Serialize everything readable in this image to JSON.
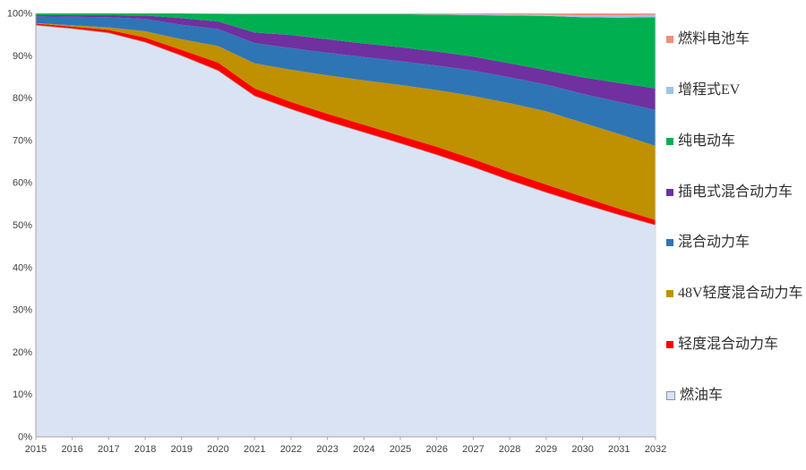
{
  "chart_data": {
    "type": "area",
    "stacking": "percent",
    "title": "",
    "xlabel": "",
    "ylabel": "",
    "x": [
      2015,
      2016,
      2017,
      2018,
      2019,
      2020,
      2021,
      2022,
      2023,
      2024,
      2025,
      2026,
      2027,
      2028,
      2029,
      2030,
      2031,
      2032
    ],
    "x_tick_labels": [
      "2015",
      "2016",
      "2017",
      "2018",
      "2019",
      "2020",
      "2021",
      "2022",
      "2023",
      "2024",
      "2025",
      "2026",
      "2027",
      "2028",
      "2029",
      "2030",
      "2031",
      "2032"
    ],
    "y_tick_labels": [
      "0%",
      "10%",
      "20%",
      "30%",
      "40%",
      "50%",
      "60%",
      "70%",
      "80%",
      "90%",
      "100%"
    ],
    "ylim": [
      0,
      100
    ],
    "grid": false,
    "legend_position": "right",
    "series": [
      {
        "name": "燃料电池车",
        "color": "#ef8d7d",
        "values": [
          0,
          0,
          0,
          0,
          0,
          0.05,
          0.1,
          0.1,
          0.1,
          0.1,
          0.1,
          0.15,
          0.2,
          0.25,
          0.3,
          0.45,
          0.5,
          0.3
        ]
      },
      {
        "name": "增程式EV",
        "color": "#9dc3e6",
        "values": [
          0,
          0,
          0,
          0,
          0,
          0.05,
          0.1,
          0.1,
          0.1,
          0.1,
          0.1,
          0.15,
          0.2,
          0.25,
          0.3,
          0.45,
          0.5,
          0.6
        ]
      },
      {
        "name": "纯电动车",
        "color": "#00b050",
        "values": [
          0.4,
          0.4,
          0.4,
          0.5,
          1.1,
          1.8,
          4.3,
          4.9,
          5.9,
          6.9,
          7.8,
          8.7,
          9.8,
          11.3,
          12.8,
          14.2,
          15.4,
          16.8
        ]
      },
      {
        "name": "插电式混合动力车",
        "color": "#7030a0",
        "values": [
          0.3,
          0.4,
          0.5,
          0.8,
          1.6,
          1.8,
          2.5,
          3.1,
          3.2,
          3.2,
          3.3,
          3.3,
          3.3,
          3.3,
          3.4,
          3.9,
          4.5,
          5.1
        ]
      },
      {
        "name": "混合动力车",
        "color": "#2e75b6",
        "values": [
          1.6,
          2.0,
          2.4,
          2.9,
          3.4,
          4.0,
          4.8,
          5.1,
          5.3,
          5.5,
          5.6,
          5.8,
          6.0,
          6.1,
          6.3,
          6.8,
          7.6,
          8.5
        ]
      },
      {
        "name": "48V轻度混合动力车",
        "color": "#bf9000",
        "values": [
          0.1,
          0.3,
          0.6,
          1.5,
          2.5,
          3.9,
          5.9,
          7.6,
          9.1,
          10.5,
          12.0,
          13.4,
          14.9,
          16.3,
          17.3,
          17.5,
          17.6,
          17.5
        ]
      },
      {
        "name": "轻度混合动力车",
        "color": "#fe0000",
        "values": [
          0.4,
          0.5,
          0.7,
          1.1,
          1.4,
          1.9,
          1.8,
          1.7,
          1.8,
          1.8,
          1.8,
          1.9,
          1.9,
          1.9,
          1.9,
          1.7,
          1.5,
          1.2
        ]
      },
      {
        "name": "燃油车",
        "color": "#dae3f3",
        "swatch_border": "#8496b0",
        "top_outline": "#a6a6a6",
        "values": [
          97.2,
          96.4,
          95.4,
          93.2,
          90.0,
          86.5,
          80.5,
          77.4,
          74.5,
          71.9,
          69.3,
          66.6,
          63.7,
          60.6,
          57.7,
          55.0,
          52.4,
          50.0
        ]
      }
    ]
  },
  "style": {
    "axis_color": "#a6a6a6",
    "tick_label_color": "#404040",
    "plot_right_border": "#d9d9d9",
    "legend_text_color": "#303030"
  }
}
